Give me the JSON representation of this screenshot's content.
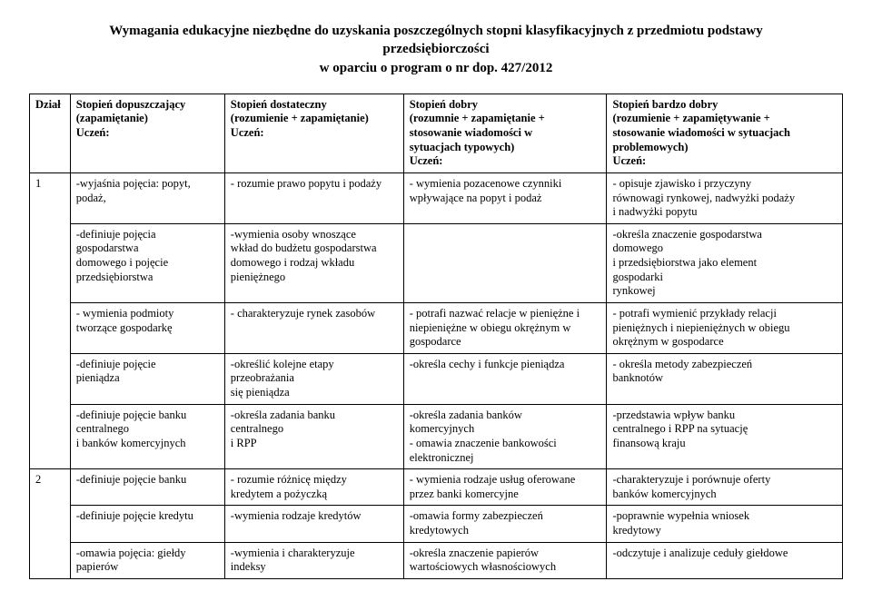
{
  "title_lines": [
    "Wymagania edukacyjne niezbędne do uzyskania poszczególnych stopni klasyfikacyjnych z przedmiotu podstawy",
    "przedsiębiorczości",
    "w oparciu o program o nr dop. 427/2012"
  ],
  "columns": {
    "dzial": "Dział",
    "c1_l1": "Stopień dopuszczający",
    "c1_l2": "(zapamiętanie)",
    "c1_l3": "Uczeń:",
    "c2_l1": "Stopień dostateczny",
    "c2_l2": "(rozumienie + zapamiętanie)",
    "c2_l3": "Uczeń:",
    "c3_l1": "Stopień dobry",
    "c3_l2": "(rozumnie + zapamiętanie +",
    "c3_l3": "stosowanie wiadomości w",
    "c3_l4": "sytuacjach typowych)",
    "c3_l5": "Uczeń:",
    "c4_l1": "Stopień bardzo dobry",
    "c4_l2": "(rozumienie + zapamiętywanie +",
    "c4_l3": "stosowanie wiadomości w sytuacjach",
    "c4_l4": "problemowych)",
    "c4_l5": "Uczeń:"
  },
  "sect1": {
    "num": "1",
    "r1c1a": "-wyjaśnia pojęcia: popyt,",
    "r1c1b": "podaż,",
    "r1c2": "- rozumie prawo popytu i podaży",
    "r1c3a": "- wymienia pozacenowe czynniki",
    "r1c3b": "wpływające na popyt i podaż",
    "r1c4a": "- opisuje zjawisko i przyczyny",
    "r1c4b": "równowagi rynkowej, nadwyżki podaży",
    "r1c4c": "i nadwyżki popytu",
    "r2c1a": "-definiuje pojęcia",
    "r2c1b": "gospodarstwa",
    "r2c1c": "domowego i pojęcie",
    "r2c1d": "przedsiębiorstwa",
    "r2c2a": "-wymienia osoby wnoszące",
    "r2c2b": "wkład do budżetu gospodarstwa",
    "r2c2c": "domowego i rodzaj wkładu",
    "r2c2d": "pieniężnego",
    "r2c4a": "-określa znaczenie gospodarstwa",
    "r2c4b": "domowego",
    "r2c4c": "i przedsiębiorstwa jako element",
    "r2c4d": "gospodarki",
    "r2c4e": "rynkowej",
    "r3c1a": "- wymienia podmioty",
    "r3c1b": "tworzące gospodarkę",
    "r3c2": "- charakteryzuje rynek zasobów",
    "r3c3a": "- potrafi nazwać relacje w pieniężne i",
    "r3c3b": "niepieniężne w obiegu okrężnym w",
    "r3c3c": "gospodarce",
    "r3c4a": "- potrafi wymienić przykłady relacji",
    "r3c4b": "pieniężnych i niepieniężnych w obiegu",
    "r3c4c": "okrężnym w gospodarce",
    "r4c1a": "-definiuje pojęcie",
    "r4c1b": "pieniądza",
    "r4c2a": "-określić kolejne etapy",
    "r4c2b": "przeobrażania",
    "r4c2c": "się pieniądza",
    "r4c3": "-określa cechy i funkcje pieniądza",
    "r4c4a": "- określa metody zabezpieczeń",
    "r4c4b": "banknotów",
    "r5c1a": "-definiuje pojęcie banku",
    "r5c1b": "centralnego",
    "r5c1c": "i banków komercyjnych",
    "r5c2a": "-określa zadania banku",
    "r5c2b": "centralnego",
    "r5c2c": "i RPP",
    "r5c3a": "-określa zadania banków",
    "r5c3b": "komercyjnych",
    "r5c3c": "- omawia znaczenie bankowości",
    "r5c3d": "elektronicznej",
    "r5c4a": "-przedstawia wpływ banku",
    "r5c4b": "centralnego i RPP na sytuację",
    "r5c4c": "finansową kraju"
  },
  "sect2": {
    "num": "2",
    "r1c1": "-definiuje pojęcie banku",
    "r1c2a": "- rozumie różnicę między",
    "r1c2b": "kredytem a pożyczką",
    "r1c3a": "- wymienia rodzaje usług oferowane",
    "r1c3b": "przez banki komercyjne",
    "r1c4a": "-charakteryzuje i porównuje oferty",
    "r1c4b": "banków komercyjnych",
    "r2c1": "-definiuje pojęcie kredytu",
    "r2c2": "-wymienia rodzaje kredytów",
    "r2c3a": "-omawia formy zabezpieczeń",
    "r2c3b": "kredytowych",
    "r2c4a": "-poprawnie wypełnia wniosek",
    "r2c4b": "kredytowy",
    "r3c1a": "-omawia pojęcia: giełdy",
    "r3c1b": "papierów",
    "r3c2a": "-wymienia i charakteryzuje",
    "r3c2b": "indeksy",
    "r3c3a": "-określa znaczenie papierów",
    "r3c3b": "wartościowych własnościowych",
    "r3c4": "-odczytuje i analizuje ceduły giełdowe"
  }
}
